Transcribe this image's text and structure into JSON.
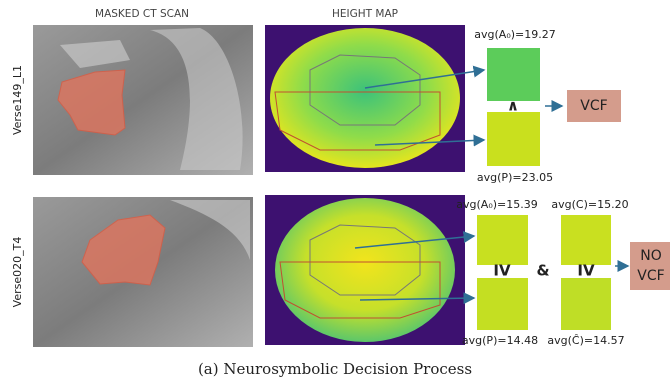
{
  "headers": {
    "ct": "MASKED CT SCAN",
    "height": "HEIGHT MAP"
  },
  "rows": [
    {
      "label": "Verse149_L1",
      "a": "avg(A₀)=19.27",
      "p": "avg(P)=23.05",
      "operator": "∧",
      "decision": "VCF"
    },
    {
      "label": "Verse020_T4",
      "a": "avg(A₀)=15.39",
      "p": "avg(P)=14.48",
      "c": "avg(C)=15.20",
      "c_hat": "avg(Ĉ)=14.57",
      "operator_left": "IV",
      "and": "&",
      "operator_right": "IV",
      "decision": [
        "NO",
        "VCF"
      ]
    }
  ],
  "caption": "(a) Neurosymbolic Decision Process"
}
